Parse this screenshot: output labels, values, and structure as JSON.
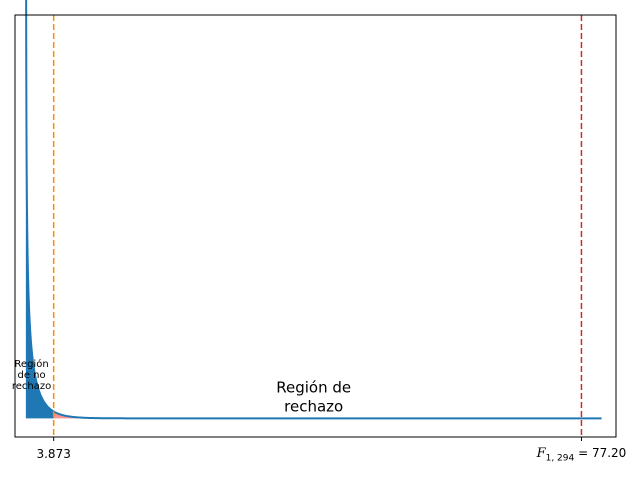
{
  "chart_data": {
    "type": "area",
    "title": "",
    "xlabel": "",
    "ylabel": "",
    "distribution": {
      "name": "F",
      "df1": 1,
      "df2": 294
    },
    "xlim": [
      -1.5,
      82
    ],
    "ylim": [
      -0.08,
      1.73
    ],
    "x_ticks": [
      {
        "value": 3.873,
        "label": "3.873"
      }
    ],
    "critical_value": {
      "value": 3.873,
      "label": "3.873",
      "color": "#ff8c00",
      "linestyle": "dashed"
    },
    "test_statistic": {
      "value": 77.2,
      "symbol": "F",
      "subscript": "1, 294",
      "value_label": "= 77.20",
      "color": "#d62728",
      "linestyle": "dashed"
    },
    "density_curve_color": "#1f77b4",
    "non_rejection_fill_color": "#1f77b4",
    "rejection_fill_color": "#ff7f7f",
    "annotations": [
      {
        "text_lines": [
          "Región",
          "de no",
          "rechazo"
        ],
        "x": 0.8,
        "y": 0.22
      },
      {
        "text_lines": [
          "Región de",
          "rechazo"
        ],
        "x": 40,
        "y": 0.11
      }
    ],
    "grid": false,
    "legend": "none"
  }
}
